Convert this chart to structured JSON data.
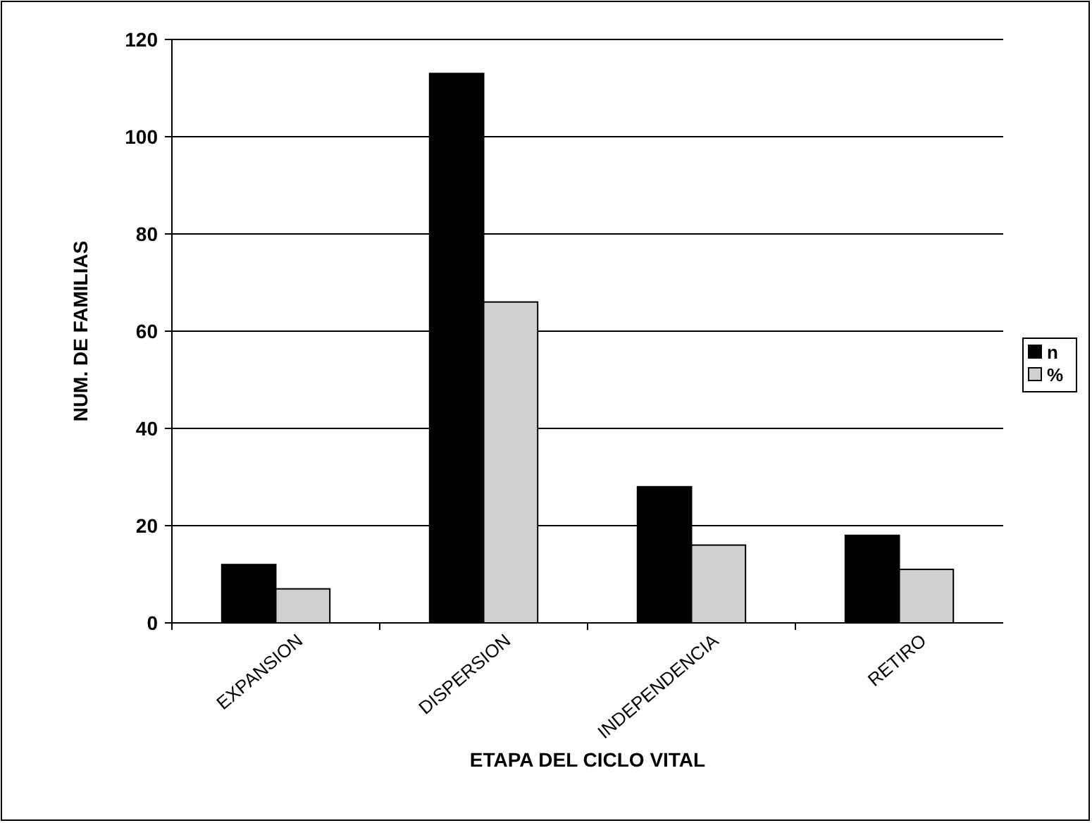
{
  "chart_data": {
    "type": "bar",
    "xlabel": "ETAPA DEL CICLO VITAL",
    "ylabel": "NUM. DE FAMILIAS",
    "categories": [
      "EXPANSION",
      "DISPERSION",
      "INDEPENDENCIA",
      "RETIRO"
    ],
    "series": [
      {
        "name": "n",
        "color": "#000000",
        "values": [
          12,
          113,
          28,
          18
        ]
      },
      {
        "name": "%",
        "color": "#d0d0d0",
        "values": [
          7,
          66,
          16,
          11
        ]
      }
    ],
    "ylim": [
      0,
      120
    ],
    "yticks": [
      0,
      20,
      40,
      60,
      80,
      100,
      120
    ],
    "grid": "y",
    "legend": "right"
  }
}
